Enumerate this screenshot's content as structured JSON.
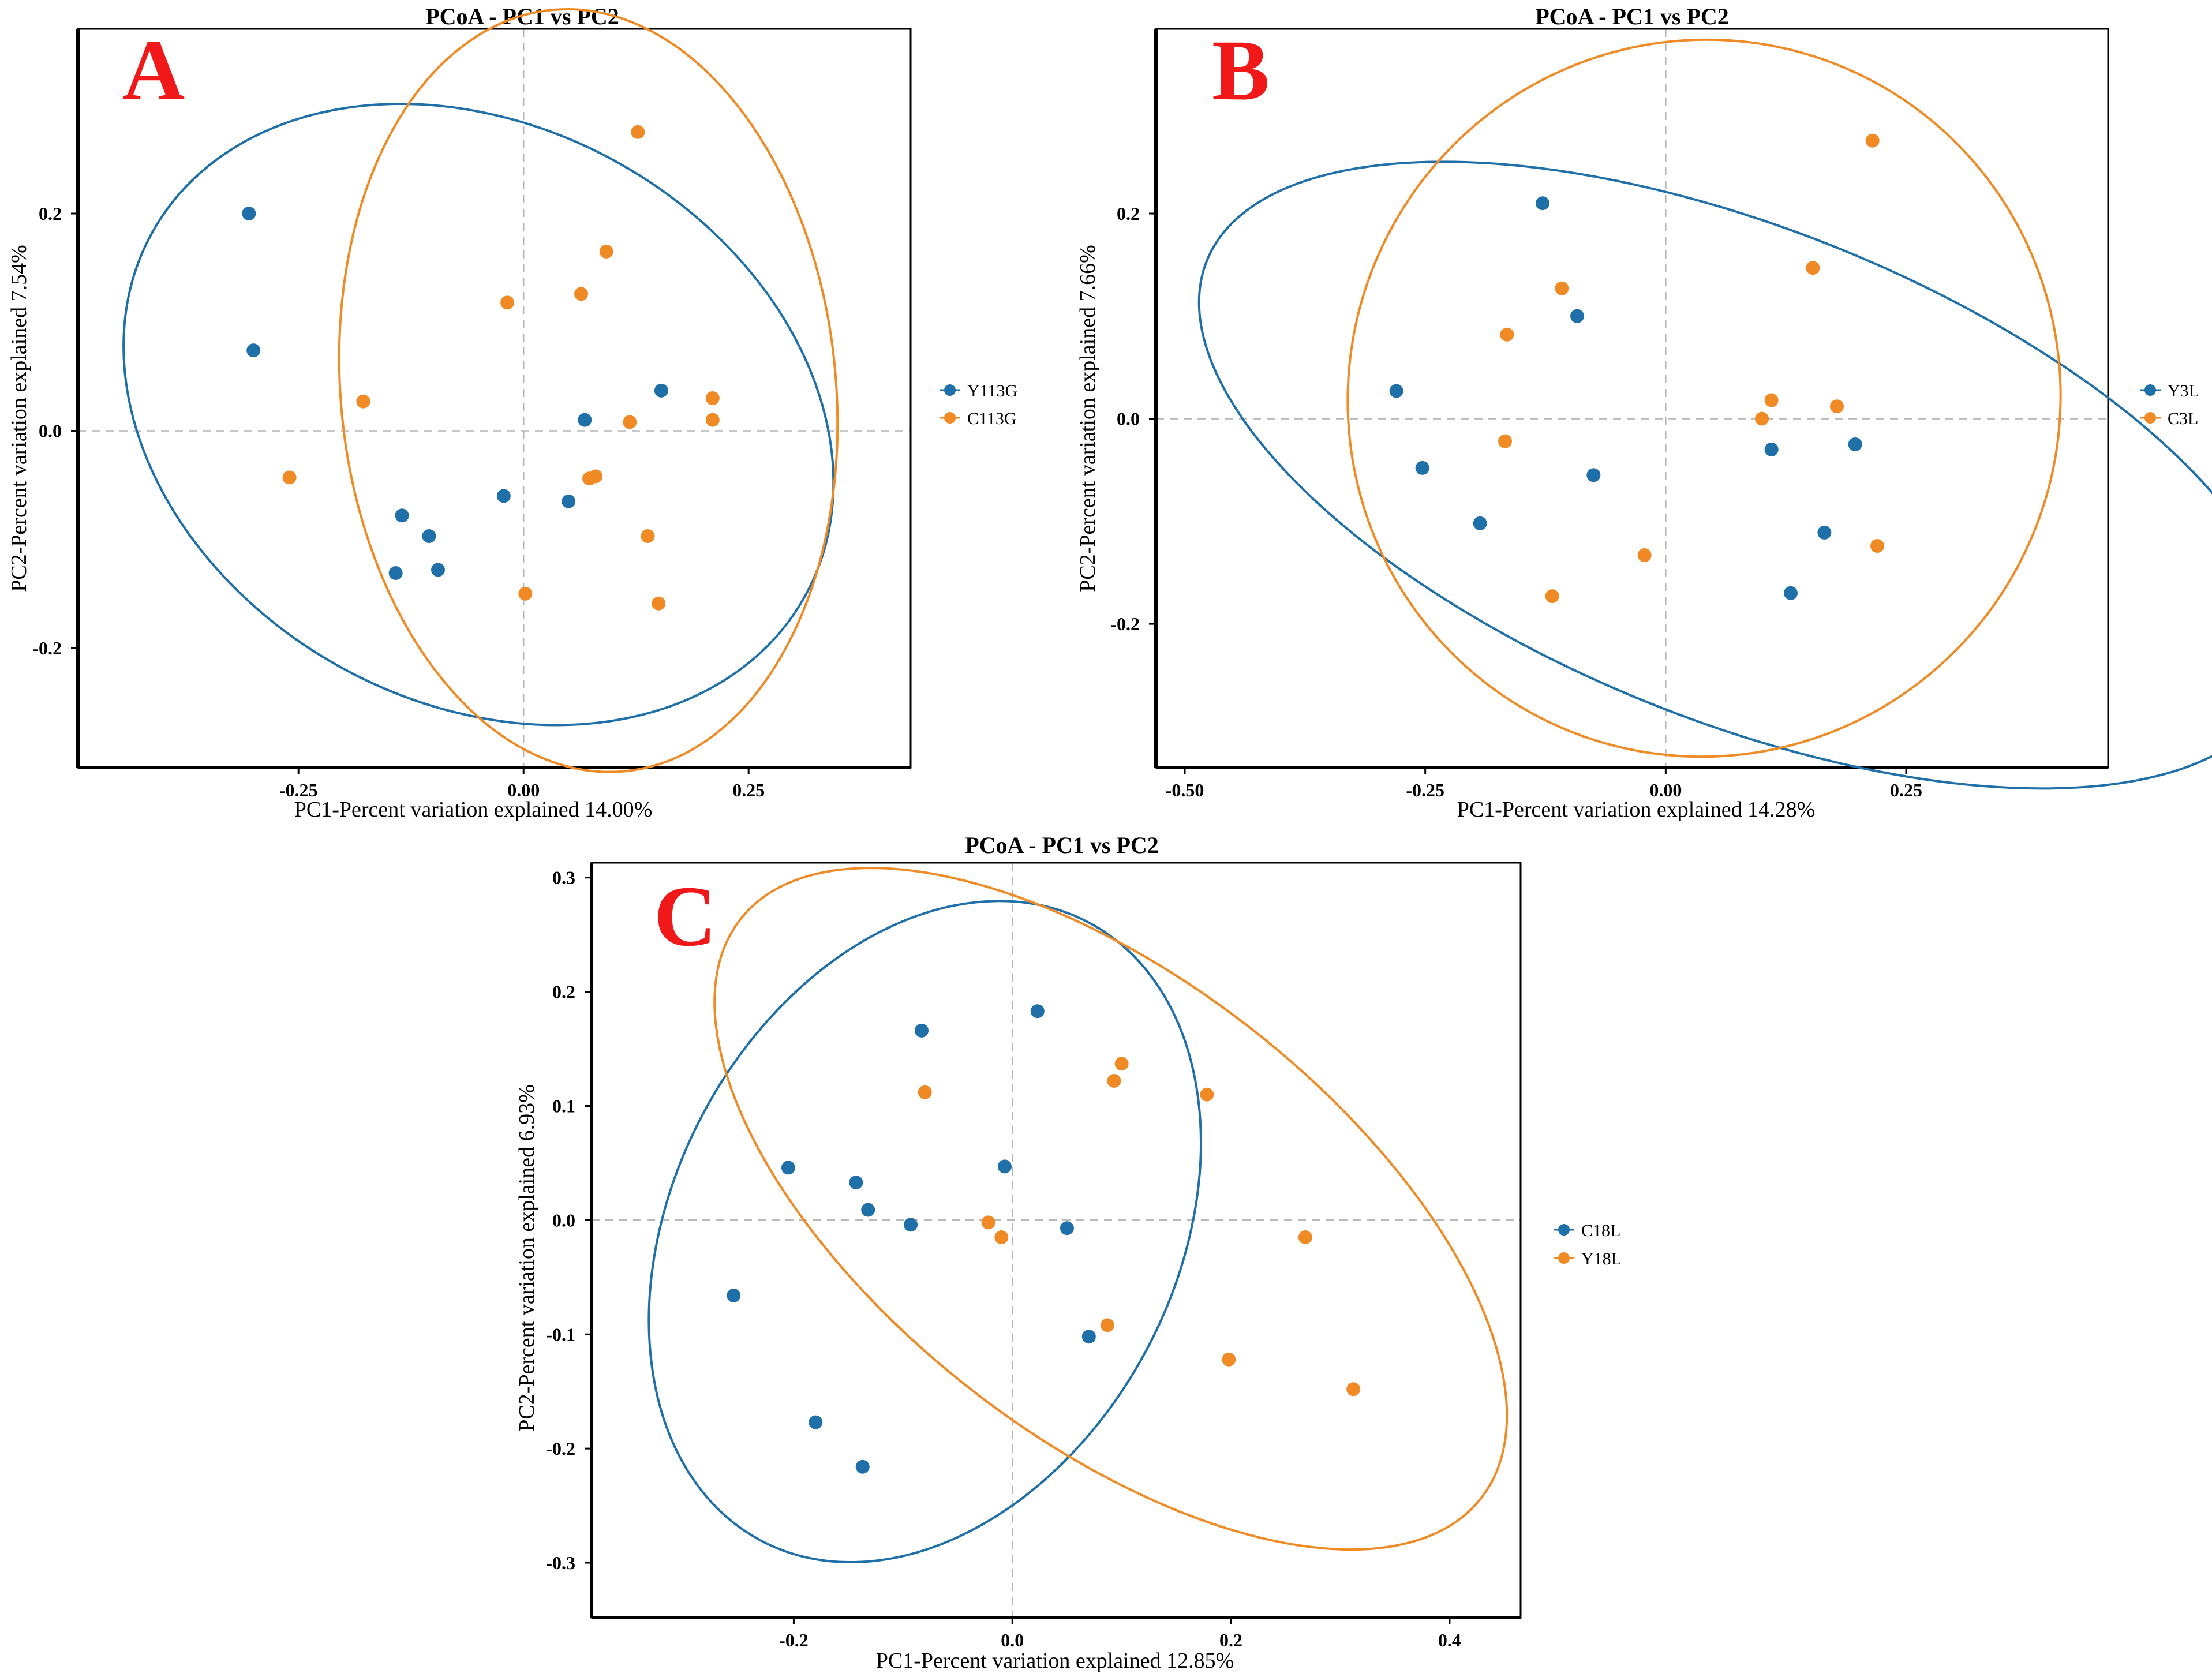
{
  "colors": {
    "blue": "#1f6fa8",
    "orange": "#f08a24",
    "letter": "#f01818",
    "refline": "#b5b5b5"
  },
  "chart_data": [
    {
      "type": "scatter",
      "panel_letter": "A",
      "title": "PCoA - PC1 vs PC2",
      "xlabel": "PC1-Percent variation explained 14.00%",
      "ylabel": "PC2-Percent variation explained 7.54%",
      "xlim": [
        -0.495,
        0.43
      ],
      "ylim": [
        -0.31,
        0.37
      ],
      "xticks": [
        -0.25,
        0,
        0.25
      ],
      "xtick_labels": [
        "-0.25",
        "0.00",
        "0.25"
      ],
      "yticks": [
        -0.2,
        0,
        0.2
      ],
      "ytick_labels": [
        "-0.2",
        "0.0",
        "0.2"
      ],
      "legend": [
        "Y113G",
        "C113G"
      ],
      "series": [
        {
          "name": "Y113G",
          "color_key": "blue",
          "points": [
            [
              -0.305,
              0.2
            ],
            [
              -0.3,
              0.074
            ],
            [
              -0.135,
              -0.078
            ],
            [
              -0.105,
              -0.097
            ],
            [
              -0.142,
              -0.131
            ],
            [
              -0.095,
              -0.128
            ],
            [
              -0.022,
              -0.06
            ],
            [
              0.05,
              -0.065
            ],
            [
              0.068,
              0.01
            ],
            [
              0.153,
              0.037
            ]
          ],
          "ellipse": {
            "cx": -0.05,
            "cy": 0.015,
            "rx": 0.415,
            "ry": 0.265,
            "angle": 29.3
          }
        },
        {
          "name": "C113G",
          "color_key": "orange",
          "points": [
            [
              0.127,
              0.275
            ],
            [
              0.092,
              0.165
            ],
            [
              -0.018,
              0.118
            ],
            [
              0.064,
              0.126
            ],
            [
              -0.178,
              0.027
            ],
            [
              -0.26,
              -0.043
            ],
            [
              0.118,
              0.008
            ],
            [
              0.21,
              0.03
            ],
            [
              0.21,
              0.01
            ],
            [
              0.08,
              -0.042
            ],
            [
              0.073,
              -0.044
            ],
            [
              0.138,
              -0.097
            ],
            [
              0.002,
              -0.15
            ],
            [
              0.15,
              -0.159
            ]
          ],
          "ellipse": {
            "cx": 0.072,
            "cy": 0.037,
            "rx": 0.275,
            "ry": 0.352,
            "angle": -5.5
          }
        }
      ]
    },
    {
      "type": "scatter",
      "panel_letter": "B",
      "title": "PCoA - PC1 vs PC2",
      "xlabel": "PC1-Percent variation explained 14.28%",
      "ylabel": "PC2-Percent variation explained 7.66%",
      "xlim": [
        -0.53,
        0.46
      ],
      "ylim": [
        -0.34,
        0.38
      ],
      "xticks": [
        -0.5,
        -0.25,
        0,
        0.25
      ],
      "xtick_labels": [
        "-0.50",
        "-0.25",
        "0.00",
        "0.25"
      ],
      "yticks": [
        -0.2,
        0,
        0.2
      ],
      "ytick_labels": [
        "-0.2",
        "0.0",
        "0.2"
      ],
      "legend": [
        "Y3L",
        "C3L"
      ],
      "series": [
        {
          "name": "Y3L",
          "color_key": "blue",
          "points": [
            [
              -0.128,
              0.21
            ],
            [
              -0.092,
              0.1
            ],
            [
              -0.28,
              0.027
            ],
            [
              -0.253,
              -0.048
            ],
            [
              -0.193,
              -0.102
            ],
            [
              -0.075,
              -0.055
            ],
            [
              0.11,
              -0.03
            ],
            [
              0.197,
              -0.025
            ],
            [
              0.165,
              -0.111
            ],
            [
              0.13,
              -0.17
            ]
          ],
          "ellipse": {
            "cx": 0.08,
            "cy": -0.055,
            "rx": 0.6,
            "ry": 0.24,
            "angle": 21.8
          }
        },
        {
          "name": "C3L",
          "color_key": "orange",
          "points": [
            [
              0.215,
              0.271
            ],
            [
              0.153,
              0.147
            ],
            [
              -0.108,
              0.127
            ],
            [
              -0.165,
              0.082
            ],
            [
              0.11,
              0.018
            ],
            [
              0.1,
              0.0
            ],
            [
              0.178,
              0.012
            ],
            [
              -0.167,
              -0.022
            ],
            [
              -0.022,
              -0.133
            ],
            [
              -0.118,
              -0.173
            ],
            [
              0.22,
              -0.124
            ]
          ],
          "ellipse": {
            "cx": 0.04,
            "cy": 0.02,
            "rx": 0.37,
            "ry": 0.35,
            "angle": 25.0
          }
        }
      ]
    },
    {
      "type": "scatter",
      "panel_letter": "C",
      "title": "PCoA - PC1 vs PC2",
      "xlabel": "PC1-Percent variation explained 12.85%",
      "ylabel": "PC2-Percent variation explained 6.93%",
      "xlim": [
        -0.385,
        0.465
      ],
      "ylim": [
        -0.348,
        0.313
      ],
      "xticks": [
        -0.2,
        0,
        0.2,
        0.4
      ],
      "xtick_labels": [
        "-0.2",
        "0.0",
        "0.2",
        "0.4"
      ],
      "yticks": [
        -0.3,
        -0.2,
        -0.1,
        0,
        0.1,
        0.2,
        0.3
      ],
      "ytick_labels": [
        "-0.3",
        "-0.2",
        "-0.1",
        "0.0",
        "0.1",
        "0.2",
        "0.3"
      ],
      "legend": [
        "C18L",
        "Y18L"
      ],
      "series": [
        {
          "name": "C18L",
          "color_key": "blue",
          "points": [
            [
              0.023,
              0.183
            ],
            [
              -0.083,
              0.166
            ],
            [
              -0.205,
              0.046
            ],
            [
              -0.143,
              0.033
            ],
            [
              -0.132,
              0.009
            ],
            [
              -0.093,
              -0.004
            ],
            [
              -0.007,
              0.047
            ],
            [
              0.05,
              -0.007
            ],
            [
              0.07,
              -0.102
            ],
            [
              -0.255,
              -0.066
            ],
            [
              -0.18,
              -0.177
            ],
            [
              -0.137,
              -0.216
            ]
          ],
          "ellipse": {
            "cx": -0.08,
            "cy": -0.01,
            "rx": 0.32,
            "ry": 0.22,
            "angle": -62.0
          }
        },
        {
          "name": "Y18L",
          "color_key": "orange",
          "points": [
            [
              0.1,
              0.137
            ],
            [
              0.093,
              0.122
            ],
            [
              0.178,
              0.11
            ],
            [
              -0.08,
              0.112
            ],
            [
              -0.022,
              -0.002
            ],
            [
              -0.01,
              -0.015
            ],
            [
              0.268,
              -0.015
            ],
            [
              0.087,
              -0.092
            ],
            [
              0.198,
              -0.122
            ],
            [
              0.312,
              -0.148
            ]
          ],
          "ellipse": {
            "cx": 0.09,
            "cy": 0.01,
            "rx": 0.43,
            "ry": 0.2,
            "angle": 38.0
          }
        }
      ]
    }
  ]
}
